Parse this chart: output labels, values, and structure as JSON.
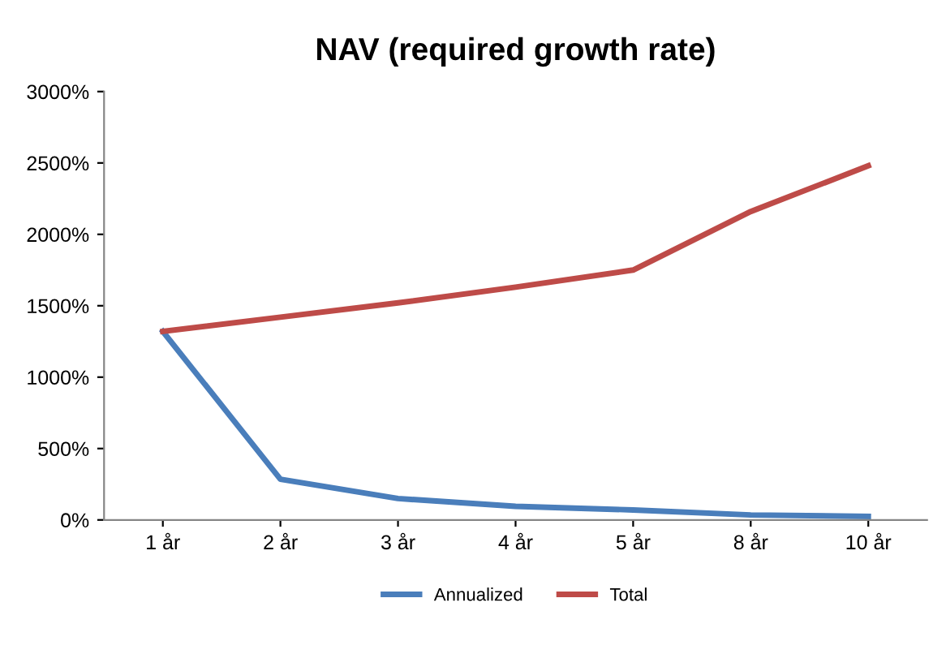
{
  "chart_data": {
    "type": "line",
    "title": "NAV (required growth rate)",
    "categories": [
      "1 år",
      "2 år",
      "3 år",
      "4 år",
      "5 år",
      "8 år",
      "10 år"
    ],
    "series": [
      {
        "name": "Annualized",
        "color": "#4a7ebb",
        "values": [
          1320,
          285,
          150,
          95,
          70,
          35,
          25
        ]
      },
      {
        "name": "Total",
        "color": "#be4b48",
        "values": [
          1320,
          1420,
          1520,
          1630,
          1750,
          2160,
          2480
        ]
      }
    ],
    "ylim": [
      0,
      3000
    ],
    "yticks": [
      {
        "value": 0,
        "label": "0%"
      },
      {
        "value": 500,
        "label": "500%"
      },
      {
        "value": 1000,
        "label": "1000%"
      },
      {
        "value": 1500,
        "label": "1500%"
      },
      {
        "value": 2000,
        "label": "2000%"
      },
      {
        "value": 2500,
        "label": "2500%"
      },
      {
        "value": 3000,
        "label": "3000%"
      }
    ],
    "grid": false,
    "legend": "bottom",
    "marker": "none",
    "line_style": "solid"
  }
}
